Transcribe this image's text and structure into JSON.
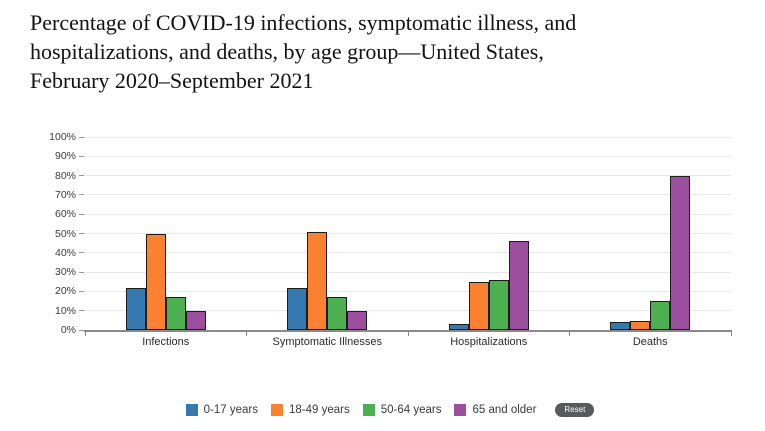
{
  "header": {
    "title_lines": [
      "Percentage of COVID-19 infections, symptomatic illness, and",
      "hospitalizations, and deaths, by age group—United States,",
      "February 2020–September 2021"
    ]
  },
  "legend": {
    "items": [
      {
        "label": "0-17 years",
        "color": "#3579b1"
      },
      {
        "label": "18-49 years",
        "color": "#fb8030"
      },
      {
        "label": "50-64 years",
        "color": "#4caf50"
      },
      {
        "label": "65 and older",
        "color": "#9c4f9f"
      }
    ],
    "reset_label": "Reset"
  },
  "chart_data": {
    "type": "bar",
    "title": "Percentage of COVID-19 infections, symptomatic illness, and hospitalizations, and deaths, by age group—United States, February 2020–September 2021",
    "categories": [
      "Infections",
      "Symptomatic Illnesses",
      "Hospitalizations",
      "Deaths"
    ],
    "series": [
      {
        "name": "0-17 years",
        "color": "#3579b1",
        "values": [
          22,
          22,
          3,
          4
        ]
      },
      {
        "name": "18-49 years",
        "color": "#fb8030",
        "values": [
          50,
          51,
          25,
          4.5
        ]
      },
      {
        "name": "50-64 years",
        "color": "#4caf50",
        "values": [
          17,
          17,
          26,
          15
        ]
      },
      {
        "name": "65 and older",
        "color": "#9c4f9f",
        "values": [
          10,
          10,
          46,
          80
        ]
      }
    ],
    "xlabel": "",
    "ylabel": "",
    "ylim": [
      0,
      100
    ],
    "ytick_step": 10,
    "ytick_labels": [
      "0%",
      "10%",
      "20%",
      "30%",
      "40%",
      "50%",
      "60%",
      "70%",
      "80%",
      "90%",
      "100%"
    ],
    "grid": true,
    "legend_position": "bottom"
  }
}
